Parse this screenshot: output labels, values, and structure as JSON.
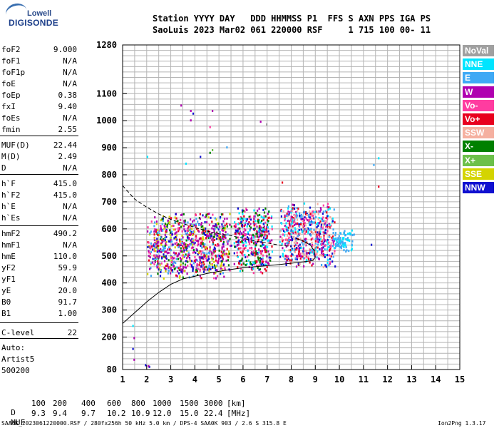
{
  "logo": {
    "brand": "Lowell",
    "product": "DIGISONDE"
  },
  "header": {
    "line1": "Station YYYY DAY   DDD HHMMSS P1  FFS S AXN PPS IGA PS",
    "line2": "SaoLuis 2023 Mar02 061 220000 RSF     1 715 100 00- 11"
  },
  "params": [
    {
      "label": "foF2",
      "value": "9.000"
    },
    {
      "label": "foF1",
      "value": "N/A"
    },
    {
      "label": "foF1p",
      "value": "N/A"
    },
    {
      "label": "foE",
      "value": "N/A"
    },
    {
      "label": "foEp",
      "value": "0.38"
    },
    {
      "label": "fxI",
      "value": "9.40"
    },
    {
      "label": "foEs",
      "value": "N/A"
    },
    {
      "label": "fmin",
      "value": "2.55"
    },
    {
      "label": "MUF(D)",
      "value": "22.44"
    },
    {
      "label": "M(D)",
      "value": "2.49"
    },
    {
      "label": "D",
      "value": "N/A"
    },
    {
      "label": "h`F",
      "value": "415.0"
    },
    {
      "label": "h`F2",
      "value": "415.0"
    },
    {
      "label": "h`E",
      "value": "N/A"
    },
    {
      "label": "h`Es",
      "value": "N/A"
    },
    {
      "label": "hmF2",
      "value": "490.2"
    },
    {
      "label": "hmF1",
      "value": "N/A"
    },
    {
      "label": "hmE",
      "value": "110.0"
    },
    {
      "label": "yF2",
      "value": "59.9"
    },
    {
      "label": "yF1",
      "value": "N/A"
    },
    {
      "label": "yE",
      "value": "20.0"
    },
    {
      "label": "B0",
      "value": "91.7"
    },
    {
      "label": "B1",
      "value": "1.00"
    },
    {
      "label": "C-level",
      "value": "22"
    }
  ],
  "auto": {
    "line1": "Auto:",
    "line2": "Artist5",
    "line3": "500200"
  },
  "legend": [
    {
      "label": "NoVal",
      "color": "#a0a0a0"
    },
    {
      "label": "NNE",
      "color": "#00e5ff"
    },
    {
      "label": "E",
      "color": "#3fa9f5"
    },
    {
      "label": "W",
      "color": "#b000b0"
    },
    {
      "label": "Vo-",
      "color": "#ff3ca0"
    },
    {
      "label": "Vo+",
      "color": "#e8001e"
    },
    {
      "label": "SSW",
      "color": "#f5b0a0"
    },
    {
      "label": "X-",
      "color": "#008000"
    },
    {
      "label": "X+",
      "color": "#6cc04a"
    },
    {
      "label": "SSE",
      "color": "#d4d400"
    },
    {
      "label": "NNW",
      "color": "#1010d0"
    }
  ],
  "chart_data": {
    "type": "scatter",
    "xlim": [
      1,
      15
    ],
    "ylim": [
      80,
      1280
    ],
    "x_ticks": [
      "1",
      "2",
      "3",
      "4",
      "5",
      "6",
      "7",
      "8",
      "9",
      "10",
      "11",
      "12",
      "13",
      "14",
      "15"
    ],
    "y_ticks": [
      {
        "value": 1280,
        "label": "1280"
      },
      {
        "value": 1100,
        "label": "1100"
      },
      {
        "value": 1000,
        "label": "1000"
      },
      {
        "value": 900,
        "label": "900"
      },
      {
        "value": 800,
        "label": "800"
      },
      {
        "value": 700,
        "label": "700"
      },
      {
        "value": 600,
        "label": "600"
      },
      {
        "value": 500,
        "label": "500"
      },
      {
        "value": 400,
        "label": "400"
      },
      {
        "value": 300,
        "label": "300"
      },
      {
        "value": 200,
        "label": "200"
      },
      {
        "value": 80,
        "label": "80"
      }
    ],
    "grid": true,
    "echo_clusters": [
      {
        "x": [
          2.0,
          5.5
        ],
        "y": [
          420,
          660
        ],
        "colors": [
          "#b000b0",
          "#b000b0",
          "#ff3ca0",
          "#e8001e",
          "#1010d0",
          "#008000",
          "#d4d400",
          "#3fa9f5"
        ]
      },
      {
        "x": [
          5.6,
          7.2
        ],
        "y": [
          440,
          680
        ],
        "colors": [
          "#b000b0",
          "#e8001e",
          "#1010d0",
          "#008000",
          "#00e5ff",
          "#ff3ca0"
        ]
      },
      {
        "x": [
          7.5,
          9.8
        ],
        "y": [
          460,
          700
        ],
        "colors": [
          "#f5b0a0",
          "#e8001e",
          "#00e5ff",
          "#3fa9f5",
          "#b000b0",
          "#ff3ca0",
          "#1010d0"
        ]
      },
      {
        "x": [
          9.7,
          10.6
        ],
        "y": [
          520,
          600
        ],
        "colors": [
          "#00e5ff",
          "#3fa9f5"
        ]
      },
      {
        "x": [
          1.9,
          2.1
        ],
        "y": [
          85,
          100
        ],
        "colors": [
          "#1010d0",
          "#b000b0"
        ]
      }
    ],
    "scattered_points": [
      {
        "x": 3.4,
        "y": 1060,
        "c": "#b000b0"
      },
      {
        "x": 3.8,
        "y": 1040,
        "c": "#b000b0"
      },
      {
        "x": 3.9,
        "y": 1030,
        "c": "#1010d0"
      },
      {
        "x": 3.8,
        "y": 1005,
        "c": "#b000b0"
      },
      {
        "x": 4.7,
        "y": 1040,
        "c": "#b000b0"
      },
      {
        "x": 4.6,
        "y": 980,
        "c": "#ff3ca0"
      },
      {
        "x": 6.7,
        "y": 1000,
        "c": "#b000b0"
      },
      {
        "x": 6.95,
        "y": 990,
        "c": "#a0a0a0"
      },
      {
        "x": 4.7,
        "y": 895,
        "c": "#6cc04a"
      },
      {
        "x": 4.6,
        "y": 885,
        "c": "#008000"
      },
      {
        "x": 4.2,
        "y": 870,
        "c": "#1010d0"
      },
      {
        "x": 5.3,
        "y": 905,
        "c": "#3fa9f5"
      },
      {
        "x": 3.6,
        "y": 845,
        "c": "#00e5ff"
      },
      {
        "x": 2.0,
        "y": 870,
        "c": "#00e5ff"
      },
      {
        "x": 11.4,
        "y": 840,
        "c": "#3fa9f5"
      },
      {
        "x": 11.6,
        "y": 865,
        "c": "#00e5ff"
      },
      {
        "x": 11.6,
        "y": 760,
        "c": "#e8001e"
      },
      {
        "x": 11.3,
        "y": 545,
        "c": "#1010d0"
      },
      {
        "x": 7.6,
        "y": 775,
        "c": "#e8001e"
      },
      {
        "x": 1.4,
        "y": 245,
        "c": "#00e5ff"
      },
      {
        "x": 1.45,
        "y": 200,
        "c": "#b000b0"
      },
      {
        "x": 1.4,
        "y": 160,
        "c": "#1010d0"
      },
      {
        "x": 1.45,
        "y": 120,
        "c": "#b000b0"
      }
    ],
    "ordinary_trace": {
      "x": [
        1.0,
        1.5,
        2.0,
        2.5,
        3.0,
        3.5,
        4.0,
        4.5,
        5.0,
        5.5,
        6.0,
        6.5,
        7.0,
        7.5,
        8.0,
        8.5,
        8.9,
        9.0,
        8.95,
        8.8,
        8.5,
        8.2
      ],
      "y": [
        250,
        290,
        330,
        365,
        395,
        415,
        425,
        435,
        443,
        450,
        456,
        460,
        464,
        468,
        473,
        478,
        483,
        495,
        520,
        540,
        555,
        565
      ]
    },
    "extraordinary_trace": {
      "x": [
        1.0,
        1.5,
        2.0,
        2.5,
        3.0,
        3.5,
        4.0,
        4.5,
        5.0,
        5.5,
        6.0,
        6.5,
        7.0,
        7.5,
        8.0
      ],
      "y": [
        760,
        710,
        680,
        655,
        635,
        620,
        605,
        592,
        582,
        575,
        565,
        555,
        548,
        540,
        535
      ]
    }
  },
  "bottom": {
    "d_label": "D",
    "d_values": [
      "100",
      "200",
      "400",
      "600",
      "800",
      "1000",
      "1500",
      "3000",
      "[km]"
    ],
    "muf_label": "MUF",
    "muf_values": [
      "9.3",
      "9.4",
      "9.7",
      "10.2",
      "10.9",
      "12.0",
      "15.0",
      "22.4",
      "[MHz]"
    ]
  },
  "footer": {
    "left": "SAA0K_2023061220000.RSF / 280fx256h 50 kHz 5.0 km / DPS-4 SAA0K 903 / 2.6 S 315.8 E",
    "right": "Ion2Png 1.3.17"
  }
}
